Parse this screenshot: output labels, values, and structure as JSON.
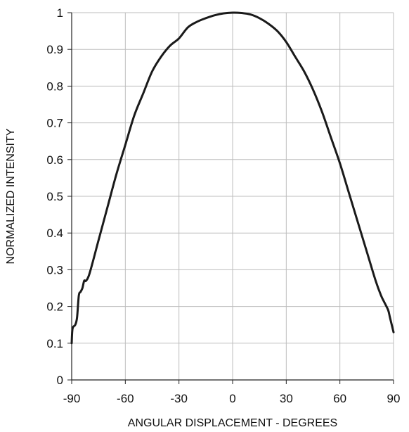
{
  "chart_data": {
    "type": "line",
    "title": "",
    "xlabel": "ANGULAR DISPLACEMENT - DEGREES",
    "ylabel": "NORMALIZED INTENSITY",
    "xlim": [
      -90,
      90
    ],
    "ylim": [
      0,
      1
    ],
    "xticks": [
      -90,
      -60,
      -30,
      0,
      30,
      60,
      90
    ],
    "yticks": [
      0,
      0.1,
      0.2,
      0.3,
      0.4,
      0.5,
      0.6,
      0.7,
      0.8,
      0.9,
      1
    ],
    "grid": true,
    "legend": "none",
    "series": [
      {
        "color": "#1a1a1a",
        "points": [
          [
            -90,
            0.1
          ],
          [
            -89.5,
            0.14
          ],
          [
            -88,
            0.15
          ],
          [
            -87,
            0.17
          ],
          [
            -86,
            0.23
          ],
          [
            -85,
            0.24
          ],
          [
            -84,
            0.25
          ],
          [
            -83,
            0.27
          ],
          [
            -82,
            0.27
          ],
          [
            -80,
            0.29
          ],
          [
            -75,
            0.38
          ],
          [
            -70,
            0.47
          ],
          [
            -65,
            0.56
          ],
          [
            -60,
            0.64
          ],
          [
            -55,
            0.72
          ],
          [
            -50,
            0.78
          ],
          [
            -45,
            0.84
          ],
          [
            -40,
            0.88
          ],
          [
            -35,
            0.91
          ],
          [
            -30,
            0.93
          ],
          [
            -25,
            0.96
          ],
          [
            -20,
            0.975
          ],
          [
            -15,
            0.985
          ],
          [
            -10,
            0.993
          ],
          [
            -5,
            0.998
          ],
          [
            0,
            1.0
          ],
          [
            5,
            0.999
          ],
          [
            10,
            0.995
          ],
          [
            15,
            0.985
          ],
          [
            20,
            0.97
          ],
          [
            25,
            0.95
          ],
          [
            30,
            0.92
          ],
          [
            35,
            0.88
          ],
          [
            40,
            0.84
          ],
          [
            45,
            0.79
          ],
          [
            50,
            0.73
          ],
          [
            55,
            0.66
          ],
          [
            60,
            0.59
          ],
          [
            65,
            0.51
          ],
          [
            70,
            0.43
          ],
          [
            75,
            0.35
          ],
          [
            80,
            0.27
          ],
          [
            83,
            0.23
          ],
          [
            85,
            0.21
          ],
          [
            87,
            0.19
          ],
          [
            88,
            0.17
          ],
          [
            90,
            0.13
          ]
        ]
      }
    ]
  }
}
